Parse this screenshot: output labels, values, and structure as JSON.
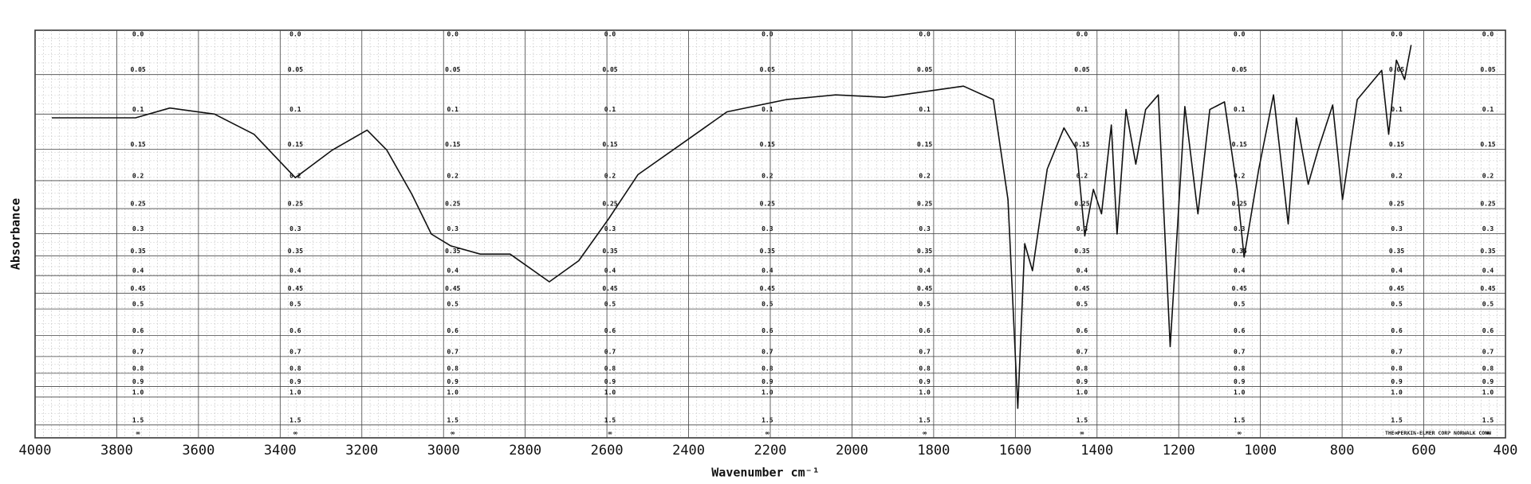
{
  "chart_data": {
    "type": "line",
    "x_label": "Wavenumber cm⁻¹",
    "y_label": "Absorbance",
    "note": "THE PERKIN-ELMER CORP NORWALK CONN",
    "yscale": "absorbance",
    "xlim": [
      4000,
      400
    ],
    "xticks": [
      4000,
      3800,
      3600,
      3400,
      3200,
      3000,
      2800,
      2600,
      2400,
      2200,
      2000,
      1800,
      1600,
      1400,
      1200,
      1000,
      800,
      600,
      400
    ],
    "ylim": [
      0,
      null
    ],
    "yticks": [
      {
        "value": 0,
        "label": "0.0"
      },
      0.05,
      0.1,
      0.15,
      0.2,
      0.25,
      0.3,
      0.35,
      0.4,
      0.45,
      0.5,
      0.6,
      0.7,
      0.8,
      0.9,
      {
        "value": 1,
        "label": "1.0"
      },
      1.5,
      {
        "value": null,
        "label": "∞"
      }
    ],
    "grid": true,
    "color": "#111111",
    "x": [
      3959,
      3850,
      3754,
      3670,
      3561,
      3464,
      3363,
      3272,
      3187,
      3139,
      3078,
      3030,
      2982,
      2910,
      2837,
      2741,
      2669,
      2596,
      2524,
      2403,
      2306,
      2161,
      2040,
      1920,
      1823,
      1727,
      1654,
      1618,
      1594,
      1577,
      1558,
      1522,
      1481,
      1450,
      1430,
      1409,
      1389,
      1365,
      1351,
      1329,
      1305,
      1281,
      1250,
      1221,
      1185,
      1153,
      1124,
      1088,
      1057,
      1040,
      1004,
      968,
      932,
      912,
      883,
      859,
      823,
      799,
      763,
      703,
      686,
      667,
      647,
      631
    ],
    "values": [
      0.105,
      0.105,
      0.105,
      0.092,
      0.1,
      0.128,
      0.195,
      0.151,
      0.122,
      0.151,
      0.223,
      0.301,
      0.327,
      0.346,
      0.346,
      0.417,
      0.362,
      0.27,
      0.19,
      0.136,
      0.097,
      0.081,
      0.075,
      0.078,
      0.071,
      0.064,
      0.081,
      0.233,
      1.14,
      0.322,
      0.387,
      0.181,
      0.119,
      0.15,
      0.305,
      0.215,
      0.26,
      0.115,
      0.301,
      0.094,
      0.173,
      0.094,
      0.075,
      0.65,
      0.09,
      0.26,
      0.094,
      0.084,
      0.215,
      0.353,
      0.181,
      0.075,
      0.28,
      0.105,
      0.206,
      0.151,
      0.088,
      0.233,
      0.081,
      0.045,
      0.128,
      0.033,
      0.056,
      0.016
    ]
  }
}
